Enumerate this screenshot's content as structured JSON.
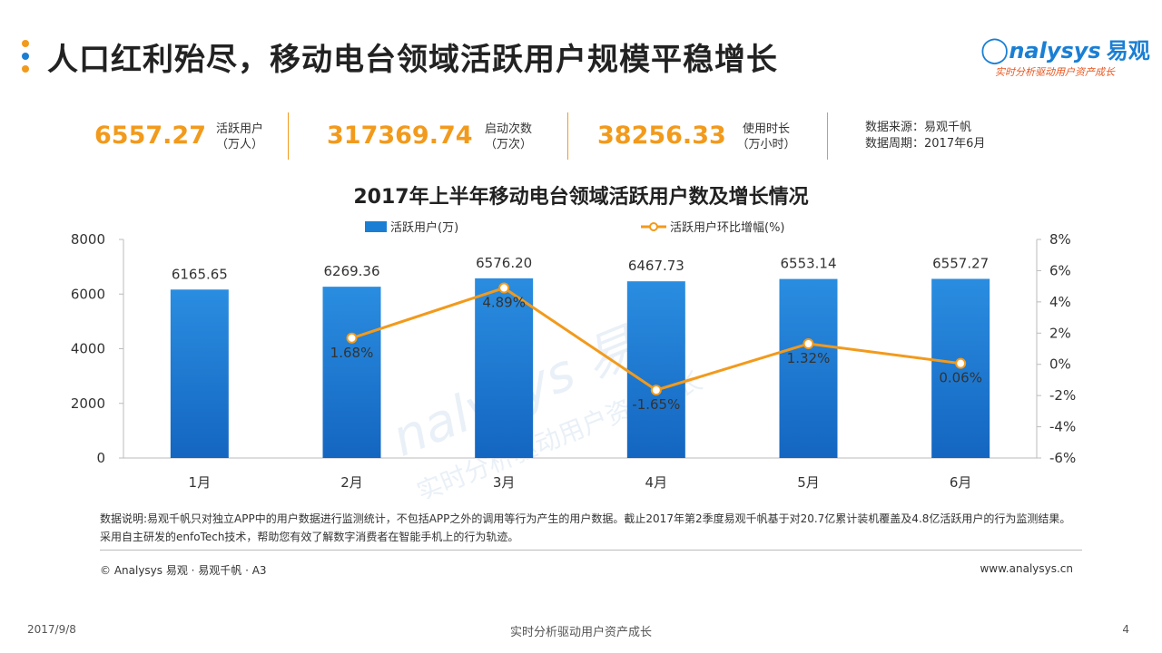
{
  "header": {
    "title": "人口红利殆尽，移动电台领域活跃用户规模平稳增长",
    "logo_text": "nalysys",
    "logo_cn": "易观",
    "logo_slogan": "实时分析驱动用户资产成长",
    "dot_colors": [
      "#f29a1c",
      "#1a7fd4",
      "#f29a1c"
    ]
  },
  "kpis": [
    {
      "value": "6557.27",
      "label1": "活跃用户",
      "label2": "（万人）"
    },
    {
      "value": "317369.74",
      "label1": "启动次数",
      "label2": "（万次）"
    },
    {
      "value": "38256.33",
      "label1": "使用时长",
      "label2": "（万小时）"
    }
  ],
  "source": {
    "line1": "数据来源：易观千帆",
    "line2": "数据周期：2017年6月"
  },
  "chart_data": {
    "type": "bar",
    "title": "2017年上半年移动电台领域活跃用户数及增长情况",
    "categories": [
      "1月",
      "2月",
      "3月",
      "4月",
      "5月",
      "6月"
    ],
    "series": [
      {
        "name": "活跃用户(万)",
        "type": "bar",
        "axis": "left",
        "color": "#1a7fd4",
        "values": [
          6165.65,
          6269.36,
          6576.2,
          6467.73,
          6553.14,
          6557.27
        ],
        "labels": [
          "6165.65",
          "6269.36",
          "6576.20",
          "6467.73",
          "6553.14",
          "6557.27"
        ]
      },
      {
        "name": "活跃用户环比增幅(%)",
        "type": "line",
        "axis": "right",
        "color": "#f29a1c",
        "values": [
          null,
          1.68,
          4.89,
          -1.65,
          1.32,
          0.06
        ],
        "labels": [
          "",
          "1.68%",
          "4.89%",
          "-1.65%",
          "1.32%",
          "0.06%"
        ]
      }
    ],
    "ylim_left": [
      0,
      8000
    ],
    "yticks_left": [
      "0",
      "2000",
      "4000",
      "6000",
      "8000"
    ],
    "ylim_right": [
      -6,
      8
    ],
    "yticks_right": [
      "-6%",
      "-4%",
      "-2%",
      "0%",
      "2%",
      "4%",
      "6%",
      "8%"
    ],
    "legend": "top",
    "grid": false
  },
  "notes": {
    "text": "数据说明:易观千帆只对独立APP中的用户数据进行监测统计，不包括APP之外的调用等行为产生的用户数据。截止2017年第2季度易观千帆基于对20.7亿累计装机覆盖及4.8亿活跃用户的行为监测结果。采用自主研发的enfoTech技术，帮助您有效了解数字消费者在智能手机上的行为轨迹。",
    "copyright": "© Analysys 易观 · 易观千帆 · A3",
    "website": "www.analysys.cn"
  },
  "footer": {
    "date": "2017/9/8",
    "slogan": "实时分析驱动用户资产成长",
    "page": "4"
  }
}
